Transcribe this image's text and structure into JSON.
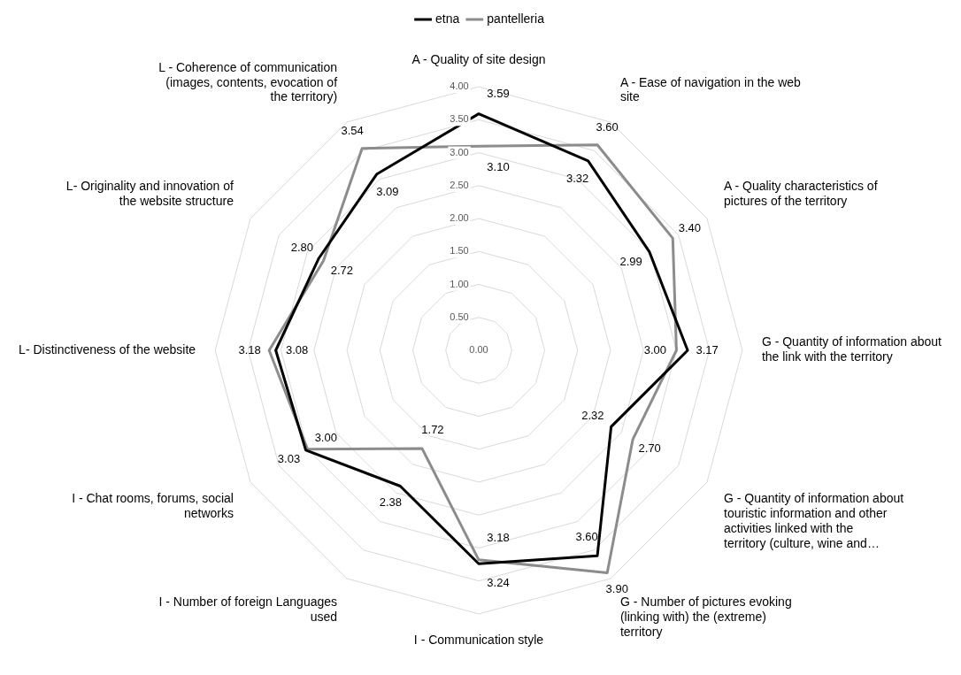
{
  "chart_data": {
    "type": "radar",
    "categories": [
      "A - Quality of site design",
      "A - Ease of navigation in the web site",
      "A - Quality characteristics of pictures of the territory",
      "G - Quantity of information about the link with the territory",
      "G - Quantity of information about touristic information and other activities linked with the territory (culture, wine and…",
      "G - Number of pictures evoking (linking with) the (extreme) territory",
      "I - Communication style",
      "I - Number of foreign Languages used",
      "I - Chat rooms, forums, social networks",
      "L- Distinctiveness of the website",
      "L- Originality and innovation of the website structure",
      "L - Coherence of communication (images, contents, evocation of the territory)"
    ],
    "series": [
      {
        "name": "etna",
        "color": "#000000",
        "values": [
          3.59,
          3.32,
          2.99,
          3.17,
          2.32,
          3.6,
          3.24,
          2.38,
          3.03,
          3.08,
          2.8,
          3.09
        ],
        "value_labels": [
          "3.59",
          "3.32",
          "2.99",
          "3.17",
          "2.32",
          "3.60",
          "3.24",
          "2.38",
          "3.03",
          "3.08",
          "2.80",
          "3.09"
        ]
      },
      {
        "name": "pantelleria",
        "color": "#8c8c8c",
        "values": [
          3.1,
          3.6,
          3.4,
          3.0,
          2.7,
          3.9,
          3.18,
          1.72,
          3.0,
          3.18,
          2.72,
          3.54
        ],
        "value_labels": [
          "3.10",
          "3.60",
          "3.40",
          "3.00",
          "2.70",
          "3.90",
          "3.18",
          "1.72",
          "3.00",
          "3.18",
          "2.72",
          "3.54"
        ]
      }
    ],
    "ylim": [
      0,
      4
    ],
    "yticks": [
      {
        "value": 0,
        "label": "0.00"
      },
      {
        "value": 0.5,
        "label": "0.50"
      },
      {
        "value": 1,
        "label": "1.00"
      },
      {
        "value": 1.5,
        "label": "1.50"
      },
      {
        "value": 2,
        "label": "2.00"
      },
      {
        "value": 2.5,
        "label": "2.50"
      },
      {
        "value": 3,
        "label": "3.00"
      },
      {
        "value": 3.5,
        "label": "3.50"
      },
      {
        "value": 4,
        "label": "4.00"
      }
    ],
    "grid": true,
    "legend": "top",
    "marker": "none",
    "line_style": "solid"
  }
}
